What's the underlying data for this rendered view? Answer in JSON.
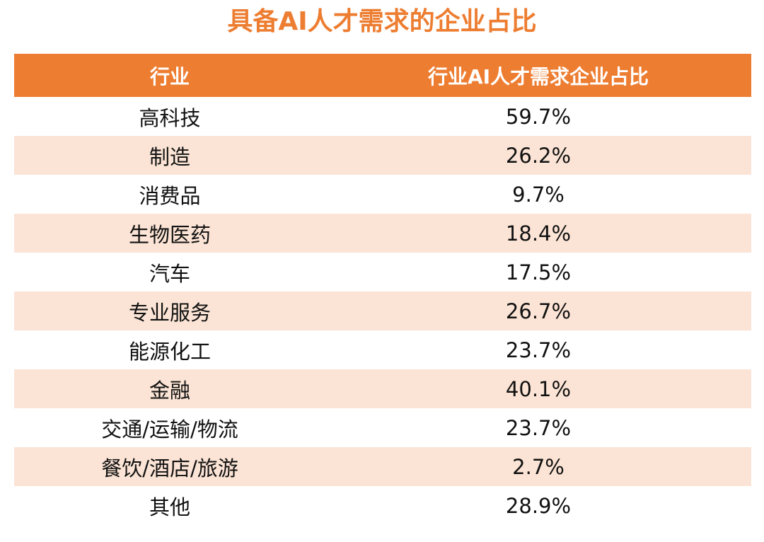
{
  "title": "具备AI人才需求的企业占比",
  "colors": {
    "accent": "#ED7D31",
    "header_text": "#FFFFFF",
    "row_shade": "#FBE4D5",
    "body_text": "#111111"
  },
  "table": {
    "headers": [
      "行业",
      "行业AI人才需求企业占比"
    ],
    "rows": [
      {
        "industry": "高科技",
        "value": "59.7%"
      },
      {
        "industry": "制造",
        "value": "26.2%"
      },
      {
        "industry": "消费品",
        "value": "9.7%"
      },
      {
        "industry": "生物医药",
        "value": "18.4%"
      },
      {
        "industry": "汽车",
        "value": "17.5%"
      },
      {
        "industry": "专业服务",
        "value": "26.7%"
      },
      {
        "industry": "能源化工",
        "value": "23.7%"
      },
      {
        "industry": "金融",
        "value": "40.1%"
      },
      {
        "industry": "交通/运输/物流",
        "value": "23.7%"
      },
      {
        "industry": "餐饮/酒店/旅游",
        "value": "2.7%"
      },
      {
        "industry": "其他",
        "value": "28.9%"
      }
    ]
  }
}
